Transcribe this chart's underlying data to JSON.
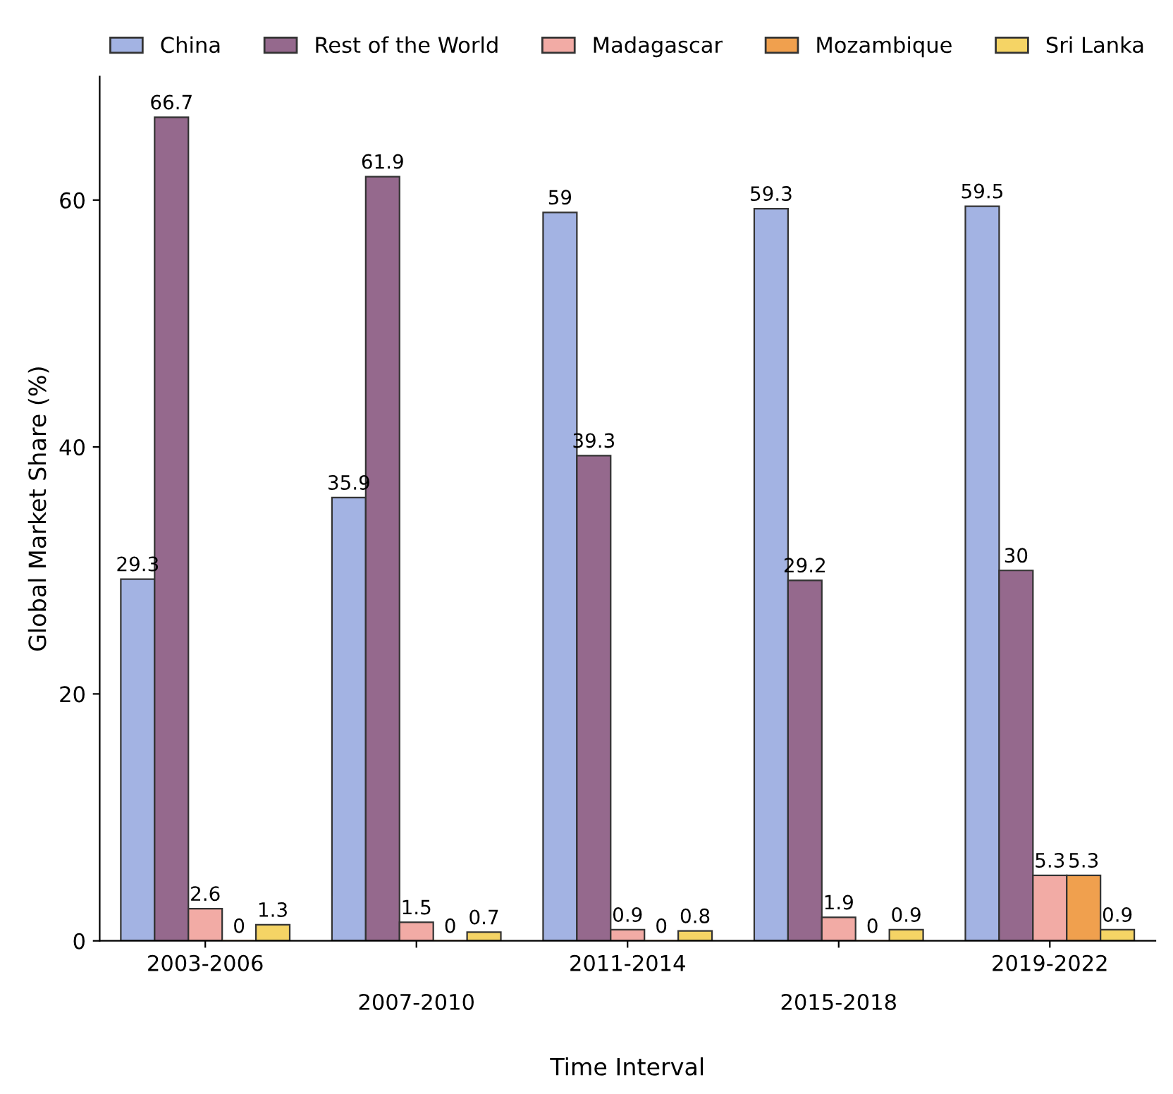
{
  "chart_data": {
    "type": "bar",
    "xlabel": "Time Interval",
    "ylabel": "Global Market Share (%)",
    "categories": [
      "2003-2006",
      "2007-2010",
      "2011-2014",
      "2015-2018",
      "2019-2022"
    ],
    "series": [
      {
        "name": "China",
        "color": "#a3b3e3",
        "values": [
          29.3,
          35.9,
          59,
          59.3,
          59.5
        ]
      },
      {
        "name": "Rest of the World",
        "color": "#95698d",
        "values": [
          66.7,
          61.9,
          39.3,
          29.2,
          30
        ]
      },
      {
        "name": "Madagascar",
        "color": "#f2aba5",
        "values": [
          2.6,
          1.5,
          0.9,
          1.9,
          5.3
        ]
      },
      {
        "name": "Mozambique",
        "color": "#f0a04e",
        "values": [
          0,
          0,
          0,
          0,
          5.3
        ]
      },
      {
        "name": "Sri Lanka",
        "color": "#f5d465",
        "values": [
          1.3,
          0.7,
          0.8,
          0.9,
          0.9
        ]
      }
    ],
    "ylim": [
      0,
      70
    ],
    "yticks": [
      0,
      20,
      40,
      60
    ],
    "grid": false,
    "legend": "top",
    "data_labels": true
  }
}
